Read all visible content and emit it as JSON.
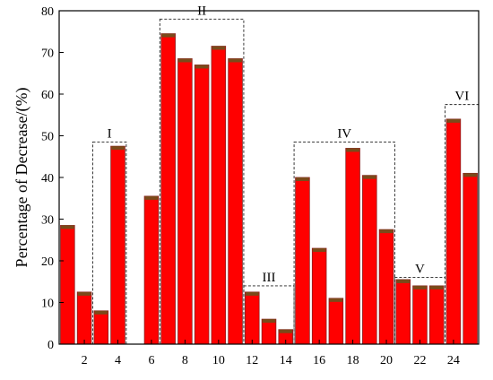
{
  "chart_data": {
    "type": "bar",
    "title": "",
    "xlabel": "",
    "ylabel": "Percentage of Decrease/(%)",
    "x": [
      1,
      2,
      3,
      4,
      5,
      6,
      7,
      8,
      9,
      10,
      11,
      12,
      13,
      14,
      15,
      16,
      17,
      18,
      19,
      20,
      21,
      22,
      23,
      24,
      25
    ],
    "values": [
      28.5,
      12.5,
      8.0,
      47.5,
      0,
      35.5,
      74.5,
      68.5,
      67.0,
      71.5,
      68.5,
      12.5,
      6.0,
      3.5,
      40.0,
      23.0,
      11.0,
      47.0,
      40.5,
      27.5,
      15.5,
      14.0,
      14.0,
      54.0,
      41.0
    ],
    "xticks": [
      2,
      4,
      6,
      8,
      10,
      12,
      14,
      16,
      18,
      20,
      22,
      24
    ],
    "xtick_labels": [
      "2",
      "4",
      "6",
      "8",
      "10",
      "12",
      "14",
      "16",
      "18",
      "20",
      "22",
      "24"
    ],
    "yticks": [
      0,
      10,
      20,
      30,
      40,
      50,
      60,
      70,
      80
    ],
    "ytick_labels": [
      "0",
      "10",
      "20",
      "30",
      "40",
      "50",
      "60",
      "70",
      "80"
    ],
    "xlim": [
      0.5,
      25.5
    ],
    "ylim": [
      0,
      80
    ],
    "grid": false,
    "bar_color": "#ff0000",
    "bar_top_color": "#7a4a1a",
    "groups": [
      {
        "label": "I",
        "from": 3,
        "to": 4,
        "top": 48.5
      },
      {
        "label": "II",
        "from": 7,
        "to": 11,
        "top": 78
      },
      {
        "label": "III",
        "from": 12,
        "to": 14,
        "top": 14
      },
      {
        "label": "IV",
        "from": 15,
        "to": 20,
        "top": 48.5
      },
      {
        "label": "V",
        "from": 21,
        "to": 23,
        "top": 16
      },
      {
        "label": "VI",
        "from": 24,
        "to": 25,
        "top": 57.5
      }
    ]
  }
}
